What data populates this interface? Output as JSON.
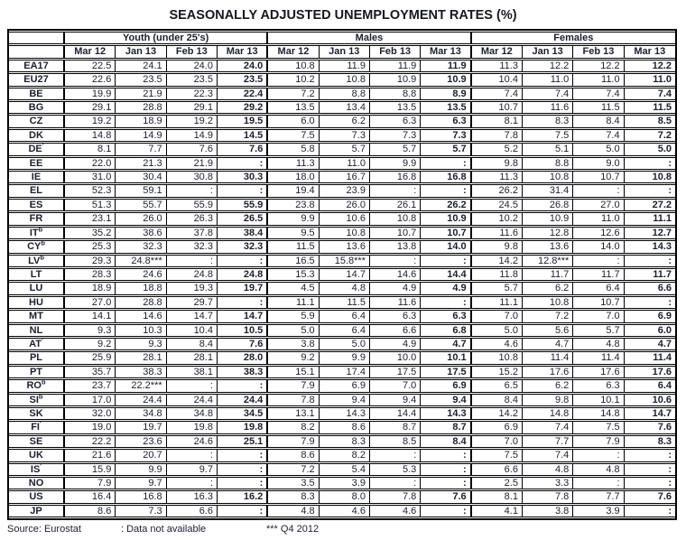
{
  "title": "SEASONALLY ADJUSTED UNEMPLOYMENT RATES (%)",
  "table": {
    "groups": [
      {
        "label": "Youth (under 25's)"
      },
      {
        "label": "Males"
      },
      {
        "label": "Females"
      }
    ],
    "months": [
      "Mar 12",
      "Jan 13",
      "Feb 13",
      "Mar 13"
    ],
    "rows": [
      {
        "code": "EA17",
        "sup": "",
        "youth": [
          "22.5",
          "24.1",
          "24.0",
          "24.0"
        ],
        "males": [
          "10.8",
          "11.9",
          "11.9",
          "11.9"
        ],
        "females": [
          "11.3",
          "12.2",
          "12.2",
          "12.2"
        ]
      },
      {
        "code": "EU27",
        "sup": "",
        "youth": [
          "22.6",
          "23.5",
          "23.5",
          "23.5"
        ],
        "males": [
          "10.2",
          "10.8",
          "10.9",
          "10.9"
        ],
        "females": [
          "10.4",
          "11.0",
          "11.0",
          "11.0"
        ]
      },
      {
        "code": "BE",
        "sup": "",
        "youth": [
          "19.9",
          "21.9",
          "22.3",
          "22.4"
        ],
        "males": [
          "7.2",
          "8.8",
          "8.8",
          "8.9"
        ],
        "females": [
          "7.4",
          "7.4",
          "7.4",
          "7.4"
        ]
      },
      {
        "code": "BG",
        "sup": "",
        "youth": [
          "29.1",
          "28.8",
          "29.1",
          "29.2"
        ],
        "males": [
          "13.5",
          "13.4",
          "13.5",
          "13.5"
        ],
        "females": [
          "10.7",
          "11.6",
          "11.5",
          "11.5"
        ]
      },
      {
        "code": "CZ",
        "sup": "",
        "youth": [
          "19.2",
          "18.9",
          "19.2",
          "19.5"
        ],
        "males": [
          "6.0",
          "6.2",
          "6.3",
          "6.3"
        ],
        "females": [
          "8.1",
          "8.3",
          "8.4",
          "8.5"
        ]
      },
      {
        "code": "DK",
        "sup": "",
        "youth": [
          "14.8",
          "14.9",
          "14.9",
          "14.5"
        ],
        "males": [
          "7.5",
          "7.3",
          "7.3",
          "7.3"
        ],
        "females": [
          "7.8",
          "7.5",
          "7.4",
          "7.2"
        ]
      },
      {
        "code": "DE",
        "sup": "′",
        "youth": [
          "8.1",
          "7.7",
          "7.6",
          "7.6"
        ],
        "males": [
          "5.8",
          "5.7",
          "5.7",
          "5.7"
        ],
        "females": [
          "5.2",
          "5.1",
          "5.0",
          "5.0"
        ]
      },
      {
        "code": "EE",
        "sup": "",
        "youth": [
          "22.0",
          "21.3",
          "21.9",
          ":"
        ],
        "males": [
          "11.3",
          "11.0",
          "9.9",
          ":"
        ],
        "females": [
          "9.8",
          "8.8",
          "9.0",
          ":"
        ]
      },
      {
        "code": "IE",
        "sup": "",
        "youth": [
          "31.0",
          "30.4",
          "30.8",
          "30.3"
        ],
        "males": [
          "18.0",
          "16.7",
          "16.8",
          "16.8"
        ],
        "females": [
          "11.3",
          "10.8",
          "10.7",
          "10.8"
        ]
      },
      {
        "code": "EL",
        "sup": "",
        "youth": [
          "52.3",
          "59.1",
          ":",
          ":"
        ],
        "males": [
          "19.4",
          "23.9",
          ":",
          ":"
        ],
        "females": [
          "26.2",
          "31.4",
          ":",
          ":"
        ]
      },
      {
        "code": "ES",
        "sup": "",
        "youth": [
          "51.3",
          "55.7",
          "55.9",
          "55.9"
        ],
        "males": [
          "23.8",
          "26.0",
          "26.1",
          "26.2"
        ],
        "females": [
          "24.5",
          "26.8",
          "27.0",
          "27.2"
        ]
      },
      {
        "code": "FR",
        "sup": "",
        "youth": [
          "23.1",
          "26.0",
          "26.3",
          "26.5"
        ],
        "males": [
          "9.9",
          "10.6",
          "10.8",
          "10.9"
        ],
        "females": [
          "10.2",
          "10.9",
          "11.0",
          "11.1"
        ]
      },
      {
        "code": "IT",
        "sup": "b",
        "youth": [
          "35.2",
          "38.6",
          "37.8",
          "38.4"
        ],
        "males": [
          "9.5",
          "10.8",
          "10.7",
          "10.7"
        ],
        "females": [
          "11.6",
          "12.8",
          "12.6",
          "12.7"
        ]
      },
      {
        "code": "CY",
        "sup": "b",
        "youth": [
          "25.3",
          "32.3",
          "32.3",
          "32.3"
        ],
        "males": [
          "11.5",
          "13.6",
          "13.8",
          "14.0"
        ],
        "females": [
          "9.8",
          "13.6",
          "14.0",
          "14.3"
        ]
      },
      {
        "code": "LV",
        "sup": "b",
        "youth": [
          "29.3",
          "24.8***",
          ":",
          ":"
        ],
        "males": [
          "16.5",
          "15.8***",
          ":",
          ":"
        ],
        "females": [
          "14.2",
          "12.8***",
          ":",
          ":"
        ]
      },
      {
        "code": "LT",
        "sup": "",
        "youth": [
          "28.3",
          "24.6",
          "24.8",
          "24.8"
        ],
        "males": [
          "15.3",
          "14.7",
          "14.6",
          "14.4"
        ],
        "females": [
          "11.8",
          "11.7",
          "11.7",
          "11.7"
        ]
      },
      {
        "code": "LU",
        "sup": "",
        "youth": [
          "18.9",
          "18.8",
          "19.3",
          "19.7"
        ],
        "males": [
          "4.5",
          "4.8",
          "4.9",
          "4.9"
        ],
        "females": [
          "5.7",
          "6.2",
          "6.4",
          "6.6"
        ]
      },
      {
        "code": "HU",
        "sup": "",
        "youth": [
          "27.0",
          "28.8",
          "29.7",
          ":"
        ],
        "males": [
          "11.1",
          "11.5",
          "11.6",
          ":"
        ],
        "females": [
          "11.1",
          "10.8",
          "10.7",
          ":"
        ]
      },
      {
        "code": "MT",
        "sup": "",
        "youth": [
          "14.1",
          "14.6",
          "14.7",
          "14.7"
        ],
        "males": [
          "5.9",
          "6.4",
          "6.3",
          "6.3"
        ],
        "females": [
          "7.0",
          "7.2",
          "7.0",
          "6.9"
        ]
      },
      {
        "code": "NL",
        "sup": "",
        "youth": [
          "9.3",
          "10.3",
          "10.4",
          "10.5"
        ],
        "males": [
          "5.0",
          "6.4",
          "6.6",
          "6.8"
        ],
        "females": [
          "5.0",
          "5.6",
          "5.7",
          "6.0"
        ]
      },
      {
        "code": "AT",
        "sup": "′",
        "youth": [
          "9.2",
          "9.3",
          "8.4",
          "7.6"
        ],
        "males": [
          "3.8",
          "5.0",
          "4.9",
          "4.7"
        ],
        "females": [
          "4.6",
          "4.7",
          "4.8",
          "4.7"
        ]
      },
      {
        "code": "PL",
        "sup": "",
        "youth": [
          "25.9",
          "28.1",
          "28.1",
          "28.0"
        ],
        "males": [
          "9.2",
          "9.9",
          "10.0",
          "10.1"
        ],
        "females": [
          "10.8",
          "11.4",
          "11.4",
          "11.4"
        ]
      },
      {
        "code": "PT",
        "sup": "",
        "youth": [
          "35.7",
          "38.3",
          "38.1",
          "38.3"
        ],
        "males": [
          "15.1",
          "17.4",
          "17.5",
          "17.5"
        ],
        "females": [
          "15.2",
          "17.6",
          "17.6",
          "17.6"
        ]
      },
      {
        "code": "RO",
        "sup": "b",
        "youth": [
          "23.7",
          "22.2***",
          ":",
          ":"
        ],
        "males": [
          "7.9",
          "6.9",
          "7.0",
          "6.9"
        ],
        "females": [
          "6.5",
          "6.2",
          "6.3",
          "6.4"
        ]
      },
      {
        "code": "SI",
        "sup": "b",
        "youth": [
          "17.0",
          "24.4",
          "24.4",
          "24.4"
        ],
        "males": [
          "7.8",
          "9.4",
          "9.4",
          "9.4"
        ],
        "females": [
          "8.4",
          "9.8",
          "10.1",
          "10.6"
        ]
      },
      {
        "code": "SK",
        "sup": "",
        "youth": [
          "32.0",
          "34.8",
          "34.8",
          "34.5"
        ],
        "males": [
          "13.1",
          "14.3",
          "14.4",
          "14.3"
        ],
        "females": [
          "14.2",
          "14.8",
          "14.8",
          "14.7"
        ]
      },
      {
        "code": "FI",
        "sup": "′",
        "youth": [
          "19.0",
          "19.7",
          "19.8",
          "19.8"
        ],
        "males": [
          "8.2",
          "8.6",
          "8.7",
          "8.7"
        ],
        "females": [
          "6.9",
          "7.4",
          "7.5",
          "7.6"
        ]
      },
      {
        "code": "SE",
        "sup": "",
        "youth": [
          "22.2",
          "23.6",
          "24.6",
          "25.1"
        ],
        "males": [
          "7.9",
          "8.3",
          "8.5",
          "8.4"
        ],
        "females": [
          "7.0",
          "7.7",
          "7.9",
          "8.3"
        ]
      },
      {
        "code": "UK",
        "sup": "",
        "youth": [
          "21.6",
          "20.7",
          ":",
          ":"
        ],
        "males": [
          "8.6",
          "8.2",
          ":",
          ":"
        ],
        "females": [
          "7.5",
          "7.4",
          ":",
          ":"
        ]
      },
      {
        "code": "IS",
        "sup": "′",
        "youth": [
          "15.9",
          "9.9",
          "9.7",
          ":"
        ],
        "males": [
          "7.2",
          "5.4",
          "5.3",
          ":"
        ],
        "females": [
          "6.6",
          "4.8",
          "4.8",
          ":"
        ]
      },
      {
        "code": "NO",
        "sup": "",
        "youth": [
          "7.9",
          "9.7",
          ":",
          ":"
        ],
        "males": [
          "3.5",
          "3.9",
          ":",
          ":"
        ],
        "females": [
          "2.5",
          "3.3",
          ":",
          ":"
        ]
      },
      {
        "code": "US",
        "sup": "",
        "youth": [
          "16.4",
          "16.8",
          "16.3",
          "16.2"
        ],
        "males": [
          "8.3",
          "8.0",
          "7.8",
          "7.6"
        ],
        "females": [
          "8.1",
          "7.8",
          "7.7",
          "7.6"
        ]
      },
      {
        "code": "JP",
        "sup": "",
        "youth": [
          "8.6",
          "7.3",
          "6.6",
          ":"
        ],
        "males": [
          "4.8",
          "4.6",
          "4.6",
          ":"
        ],
        "females": [
          "4.1",
          "3.8",
          "3.9",
          ":"
        ]
      }
    ]
  },
  "footer": {
    "source": "Source: Eurostat",
    "not_available": ": Data not available",
    "q4_note": "*** Q4 2012"
  }
}
